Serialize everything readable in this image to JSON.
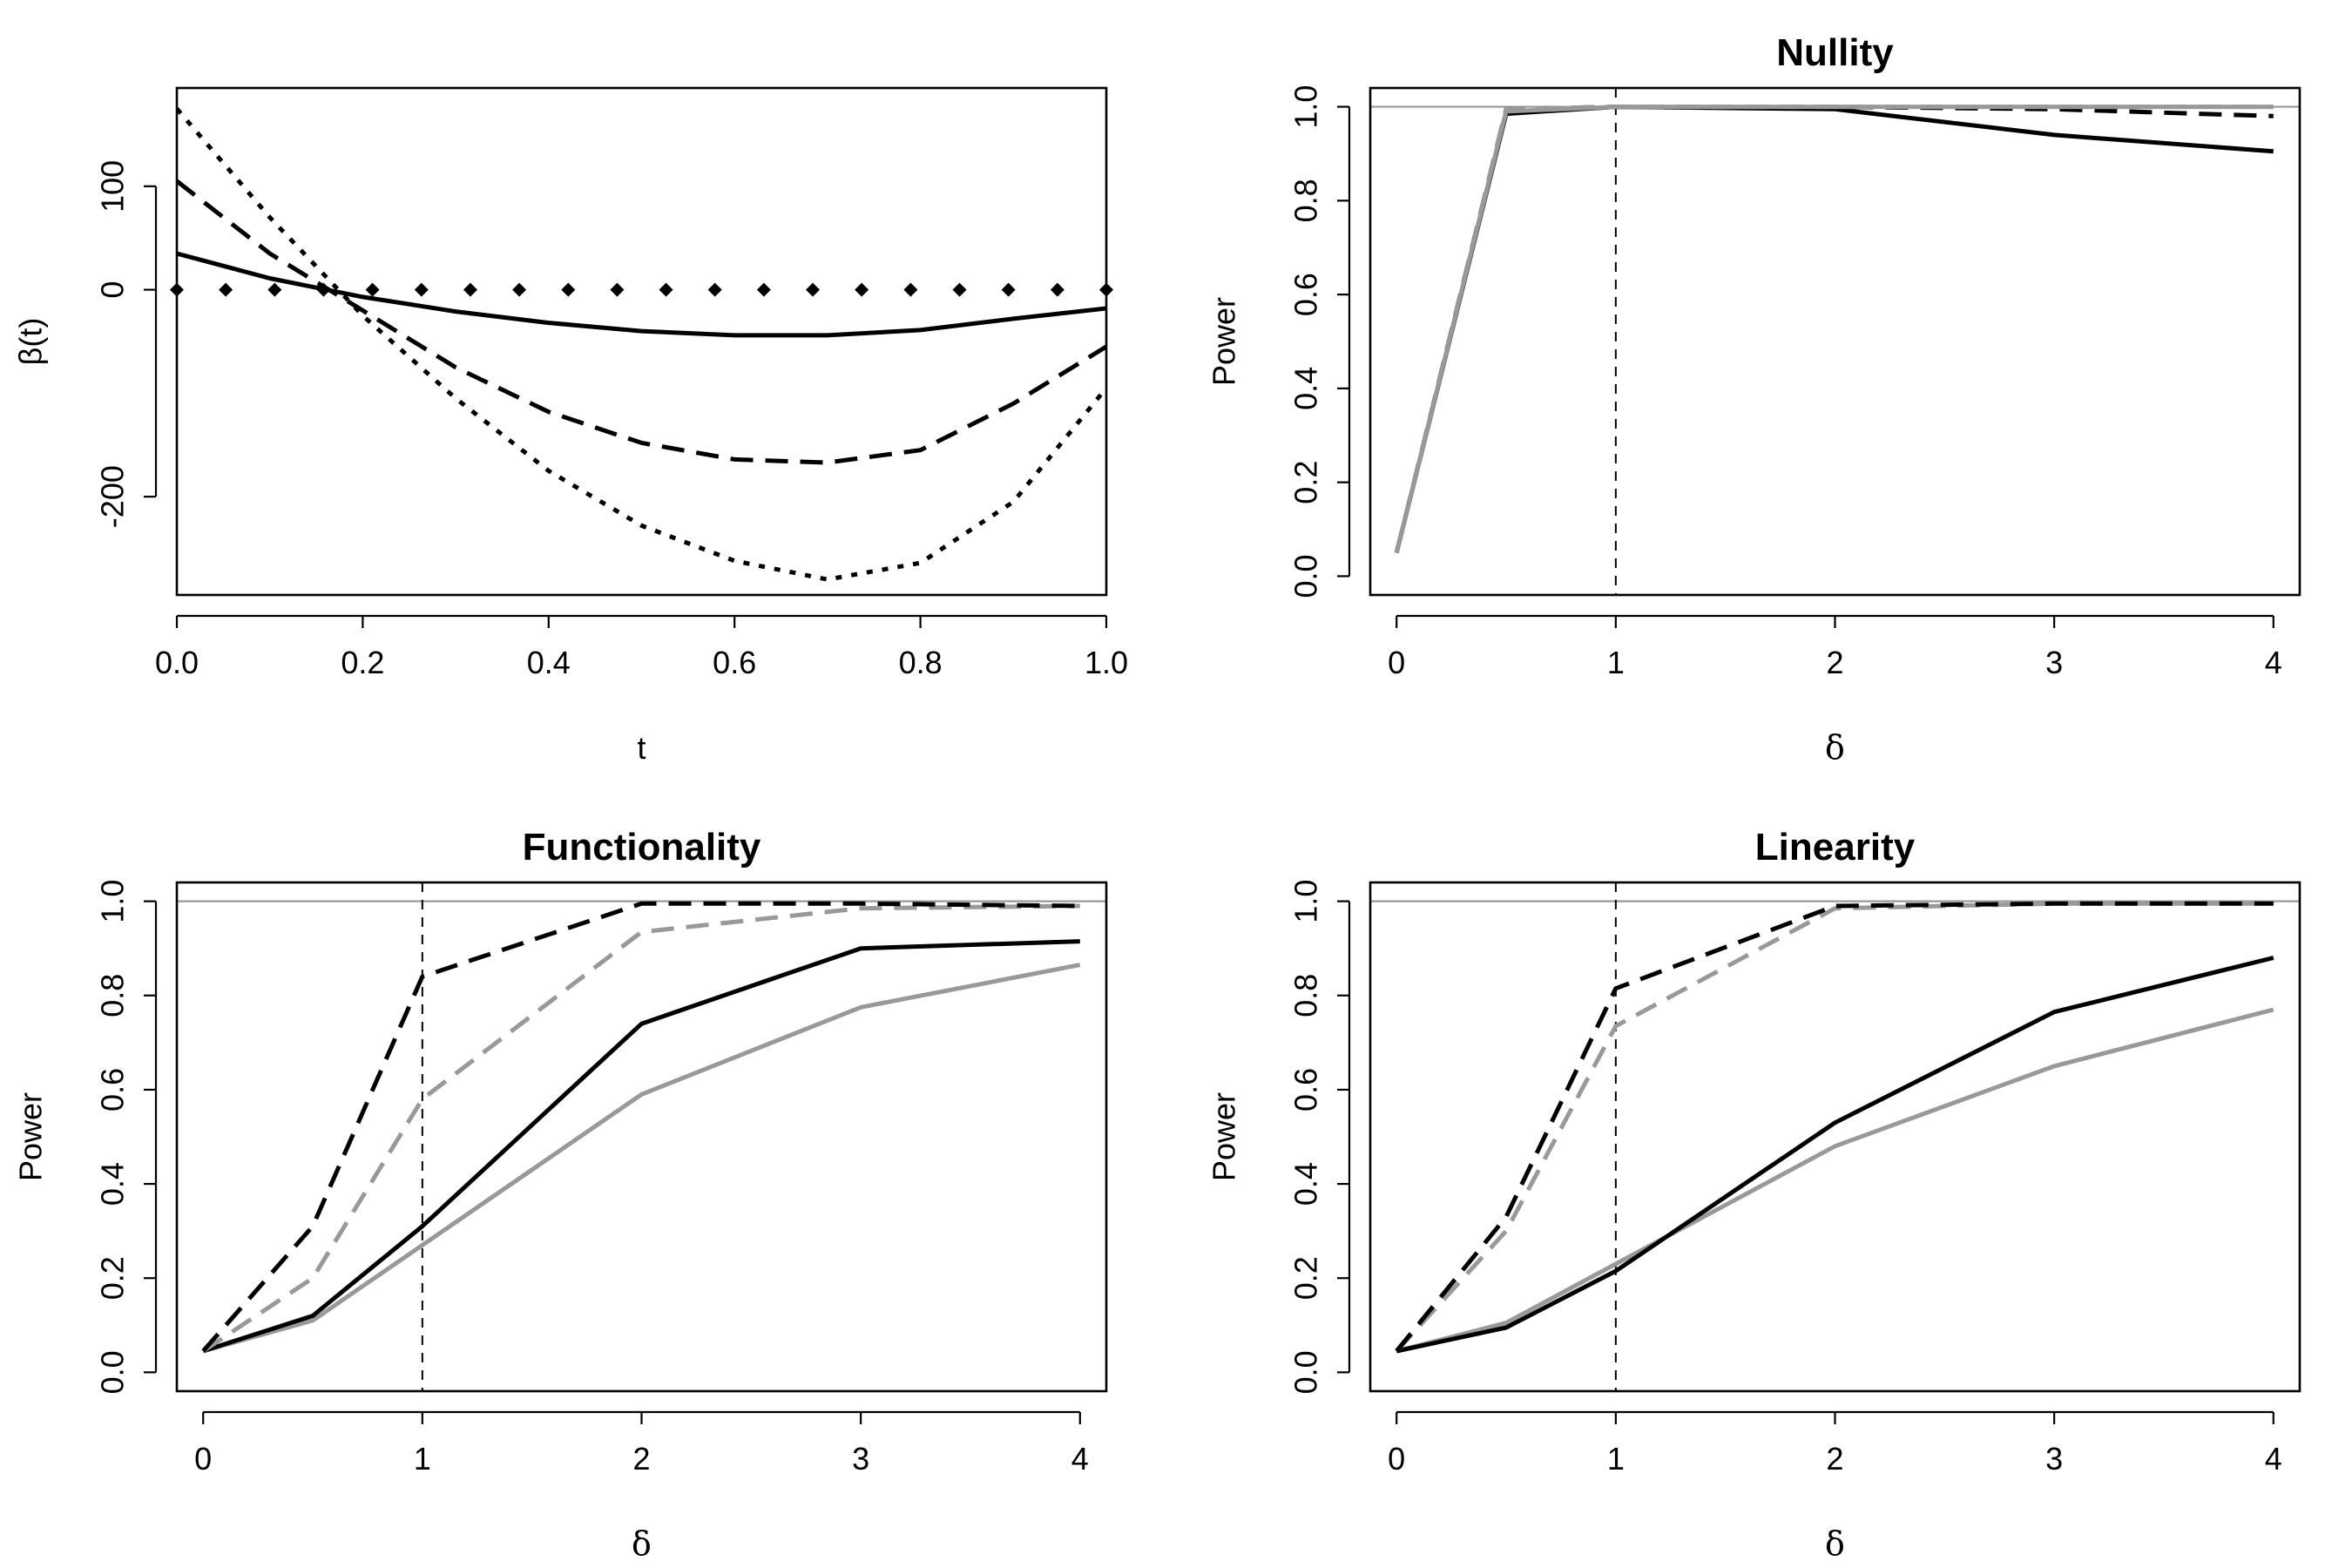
{
  "chart_data": [
    {
      "panel": "top-left",
      "type": "line",
      "title": "",
      "xlabel": "t",
      "ylabel": "β(t)",
      "xlim": [
        0,
        1
      ],
      "ylim": [
        -295,
        195
      ],
      "xticks": [
        0,
        0.2,
        0.4,
        0.6,
        0.8,
        1.0
      ],
      "xtick_labels": [
        "0.0",
        "0.2",
        "0.4",
        "0.6",
        "0.8",
        "1.0"
      ],
      "yticks": [
        100,
        0,
        -200
      ],
      "ytick_labels": [
        "100",
        "0",
        "-200"
      ],
      "series": [
        {
          "name": "dotted (zero)",
          "style": "diamond-points",
          "color": "#000000",
          "x": [
            0,
            0.0526,
            0.1053,
            0.1579,
            0.2105,
            0.2632,
            0.3158,
            0.3684,
            0.4211,
            0.4737,
            0.5263,
            0.5789,
            0.6316,
            0.6842,
            0.7368,
            0.7895,
            0.8421,
            0.8947,
            0.9474,
            1.0
          ],
          "y": [
            0,
            0,
            0,
            0,
            0,
            0,
            0,
            0,
            0,
            0,
            0,
            0,
            0,
            0,
            0,
            0,
            0,
            0,
            0,
            0
          ]
        },
        {
          "name": "solid",
          "style": "solid",
          "color": "#000000",
          "x": [
            0,
            0.1,
            0.2,
            0.3,
            0.4,
            0.5,
            0.6,
            0.7,
            0.8,
            0.9,
            1.0
          ],
          "y": [
            35,
            11,
            -7,
            -21,
            -32,
            -40,
            -44,
            -44,
            -39,
            -28,
            -18
          ]
        },
        {
          "name": "dashed",
          "style": "dashed",
          "color": "#000000",
          "x": [
            0,
            0.1,
            0.2,
            0.3,
            0.4,
            0.5,
            0.6,
            0.7,
            0.8,
            0.9,
            1.0
          ],
          "y": [
            105,
            35,
            -20,
            -75,
            -118,
            -148,
            -164,
            -167,
            -155,
            -110,
            -55
          ]
        },
        {
          "name": "dotted",
          "style": "dotted",
          "color": "#000000",
          "x": [
            0,
            0.1,
            0.2,
            0.3,
            0.4,
            0.5,
            0.6,
            0.7,
            0.8,
            0.9,
            1.0
          ],
          "y": [
            175,
            70,
            -25,
            -105,
            -175,
            -228,
            -262,
            -280,
            -264,
            -205,
            -95
          ]
        }
      ]
    },
    {
      "panel": "top-right",
      "type": "line",
      "title": "Nullity",
      "xlabel": "δ",
      "ylabel": "Power",
      "xlim": [
        -0.12,
        4.12
      ],
      "ylim": [
        -0.04,
        1.04
      ],
      "xticks": [
        0,
        1,
        2,
        3,
        4
      ],
      "xtick_labels": [
        "0",
        "1",
        "2",
        "3",
        "4"
      ],
      "yticks": [
        0.0,
        0.2,
        0.4,
        0.6,
        0.8,
        1.0
      ],
      "ytick_labels": [
        "0.0",
        "0.2",
        "0.4",
        "0.6",
        "0.8",
        "1.0"
      ],
      "hline": 1.0,
      "vline": 1,
      "series": [
        {
          "name": "black solid",
          "style": "solid",
          "color": "#000000",
          "x": [
            0,
            0.5,
            1,
            2,
            3,
            4
          ],
          "y": [
            0.05,
            0.985,
            1.0,
            0.995,
            0.94,
            0.905
          ]
        },
        {
          "name": "black dashed",
          "style": "dashed",
          "color": "#000000",
          "x": [
            0,
            0.5,
            1,
            2,
            3,
            4
          ],
          "y": [
            0.05,
            0.995,
            1.0,
            1.0,
            0.995,
            0.98
          ]
        },
        {
          "name": "gray solid",
          "style": "solid",
          "color": "#999999",
          "x": [
            0,
            0.5,
            1,
            2,
            3,
            4
          ],
          "y": [
            0.05,
            0.99,
            1.0,
            1.0,
            1.0,
            1.0
          ]
        },
        {
          "name": "gray dashed",
          "style": "dashed",
          "color": "#999999",
          "x": [
            0,
            0.5,
            1,
            2,
            3,
            4
          ],
          "y": [
            0.05,
            0.995,
            1.0,
            1.0,
            1.0,
            1.0
          ]
        }
      ]
    },
    {
      "panel": "bottom-left",
      "type": "line",
      "title": "Functionality",
      "xlabel": "δ",
      "ylabel": "Power",
      "xlim": [
        -0.12,
        4.12
      ],
      "ylim": [
        -0.04,
        1.04
      ],
      "xticks": [
        0,
        1,
        2,
        3,
        4
      ],
      "xtick_labels": [
        "0",
        "1",
        "2",
        "3",
        "4"
      ],
      "yticks": [
        0.0,
        0.2,
        0.4,
        0.6,
        0.8,
        1.0
      ],
      "ytick_labels": [
        "0.0",
        "0.2",
        "0.4",
        "0.6",
        "0.8",
        "1.0"
      ],
      "hline": 1.0,
      "vline": 1,
      "series": [
        {
          "name": "gray solid",
          "style": "solid",
          "color": "#999999",
          "x": [
            0,
            0.5,
            1,
            2,
            3,
            4
          ],
          "y": [
            0.045,
            0.11,
            0.27,
            0.59,
            0.775,
            0.865
          ]
        },
        {
          "name": "black solid",
          "style": "solid",
          "color": "#000000",
          "x": [
            0,
            0.5,
            1,
            2,
            3,
            4
          ],
          "y": [
            0.045,
            0.12,
            0.31,
            0.74,
            0.9,
            0.915
          ]
        },
        {
          "name": "gray dashed",
          "style": "dashed",
          "color": "#999999",
          "x": [
            0,
            0.5,
            1,
            2,
            3,
            4
          ],
          "y": [
            0.045,
            0.2,
            0.58,
            0.935,
            0.985,
            0.99
          ]
        },
        {
          "name": "black dashed",
          "style": "dashed",
          "color": "#000000",
          "x": [
            0,
            0.5,
            1,
            2,
            3,
            4
          ],
          "y": [
            0.045,
            0.31,
            0.84,
            0.995,
            0.995,
            0.99
          ]
        }
      ]
    },
    {
      "panel": "bottom-right",
      "type": "line",
      "title": "Linearity",
      "xlabel": "δ",
      "ylabel": "Power",
      "xlim": [
        -0.12,
        4.12
      ],
      "ylim": [
        -0.04,
        1.04
      ],
      "xticks": [
        0,
        1,
        2,
        3,
        4
      ],
      "xtick_labels": [
        "0",
        "1",
        "2",
        "3",
        "4"
      ],
      "yticks": [
        0.0,
        0.2,
        0.4,
        0.6,
        0.8,
        1.0
      ],
      "ytick_labels": [
        "0.0",
        "0.2",
        "0.4",
        "0.6",
        "0.8",
        "1.0"
      ],
      "hline": 1.0,
      "vline": 1,
      "series": [
        {
          "name": "gray solid",
          "style": "solid",
          "color": "#999999",
          "x": [
            0,
            0.5,
            1,
            2,
            3,
            4
          ],
          "y": [
            0.045,
            0.105,
            0.23,
            0.48,
            0.65,
            0.77
          ]
        },
        {
          "name": "black solid",
          "style": "solid",
          "color": "#000000",
          "x": [
            0,
            0.5,
            1,
            2,
            3,
            4
          ],
          "y": [
            0.045,
            0.095,
            0.215,
            0.53,
            0.765,
            0.88
          ]
        },
        {
          "name": "gray dashed",
          "style": "dashed",
          "color": "#999999",
          "x": [
            0,
            0.5,
            1,
            2,
            3,
            4
          ],
          "y": [
            0.045,
            0.3,
            0.735,
            0.985,
            0.995,
            0.995
          ]
        },
        {
          "name": "black dashed",
          "style": "dashed",
          "color": "#000000",
          "x": [
            0,
            0.5,
            1,
            2,
            3,
            4
          ],
          "y": [
            0.045,
            0.33,
            0.815,
            0.99,
            0.995,
            0.995
          ]
        }
      ]
    }
  ]
}
